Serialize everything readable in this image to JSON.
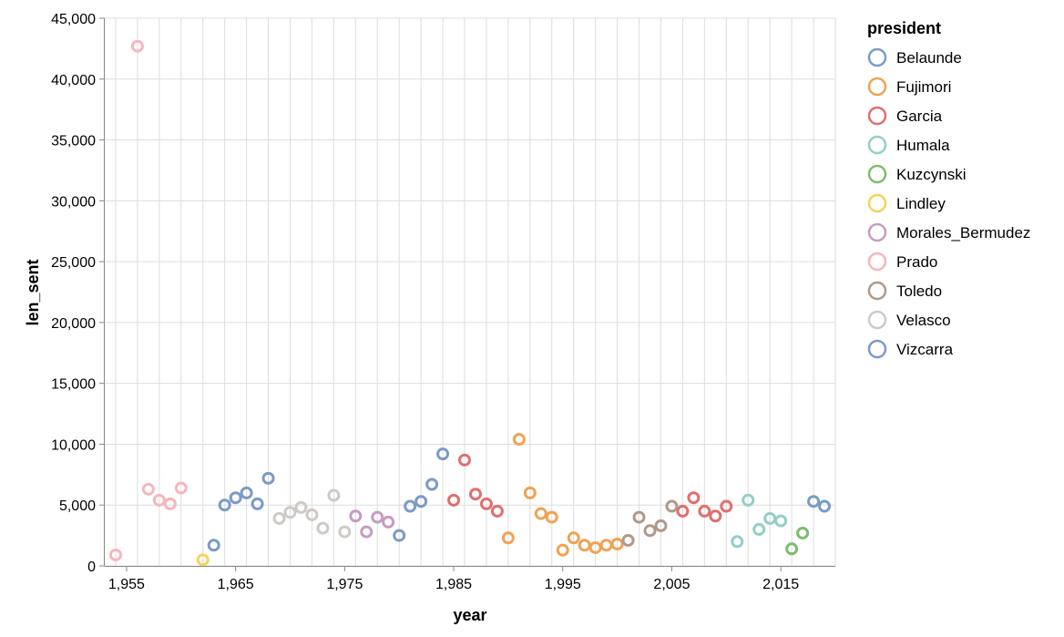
{
  "chart_data": {
    "type": "scatter",
    "xlabel": "year",
    "ylabel": "len_sent",
    "xlim": [
      1953,
      2020
    ],
    "ylim": [
      0,
      45000
    ],
    "x_ticks": [
      1955,
      1965,
      1975,
      1985,
      1995,
      2005,
      2015
    ],
    "x_tick_labels": [
      "1,955",
      "1,965",
      "1,975",
      "1,985",
      "1,995",
      "2,005",
      "2,015"
    ],
    "y_ticks": [
      0,
      5000,
      10000,
      15000,
      20000,
      25000,
      30000,
      35000,
      40000,
      45000
    ],
    "y_tick_labels": [
      "0",
      "5,000",
      "10,000",
      "15,000",
      "20,000",
      "25,000",
      "30,000",
      "35,000",
      "40,000",
      "45,000"
    ],
    "grid": true,
    "legend": {
      "title": "president",
      "position": "right",
      "entries": [
        {
          "name": "Belaunde",
          "color": "#7b9bc6"
        },
        {
          "name": "Fujimori",
          "color": "#f0a254"
        },
        {
          "name": "Garcia",
          "color": "#e06e6f"
        },
        {
          "name": "Humala",
          "color": "#93cec9"
        },
        {
          "name": "Kuzcynski",
          "color": "#7dbd6c"
        },
        {
          "name": "Lindley",
          "color": "#f3d35e"
        },
        {
          "name": "Morales_Bermudez",
          "color": "#c69bc2"
        },
        {
          "name": "Prado",
          "color": "#f7b5bd"
        },
        {
          "name": "Toledo",
          "color": "#b0998a"
        },
        {
          "name": "Velasco",
          "color": "#cfc9c6"
        },
        {
          "name": "Vizcarra",
          "color": "#7b9bc6"
        }
      ]
    },
    "series": [
      {
        "name": "Prado",
        "points": [
          [
            1954,
            900
          ],
          [
            1956,
            42700
          ],
          [
            1957,
            6300
          ],
          [
            1958,
            5400
          ],
          [
            1959,
            5100
          ],
          [
            1960,
            6400
          ]
        ]
      },
      {
        "name": "Lindley",
        "points": [
          [
            1962,
            500
          ]
        ]
      },
      {
        "name": "Belaunde",
        "points": [
          [
            1963,
            1700
          ],
          [
            1964,
            5000
          ],
          [
            1965,
            5600
          ],
          [
            1966,
            6000
          ],
          [
            1967,
            5100
          ],
          [
            1968,
            7200
          ],
          [
            1980,
            2500
          ],
          [
            1981,
            4900
          ],
          [
            1982,
            5300
          ],
          [
            1983,
            6700
          ],
          [
            1984,
            9200
          ]
        ]
      },
      {
        "name": "Velasco",
        "points": [
          [
            1969,
            3900
          ],
          [
            1970,
            4400
          ],
          [
            1971,
            4800
          ],
          [
            1972,
            4200
          ],
          [
            1973,
            3100
          ],
          [
            1974,
            5800
          ],
          [
            1975,
            2800
          ]
        ]
      },
      {
        "name": "Morales_Bermudez",
        "points": [
          [
            1976,
            4100
          ],
          [
            1977,
            2800
          ],
          [
            1978,
            4000
          ],
          [
            1979,
            3600
          ]
        ]
      },
      {
        "name": "Garcia",
        "points": [
          [
            1985,
            5400
          ],
          [
            1986,
            8700
          ],
          [
            1987,
            5900
          ],
          [
            1988,
            5100
          ],
          [
            1989,
            4500
          ],
          [
            2006,
            4500
          ],
          [
            2007,
            5600
          ],
          [
            2008,
            4500
          ],
          [
            2009,
            4100
          ],
          [
            2010,
            4900
          ]
        ]
      },
      {
        "name": "Fujimori",
        "points": [
          [
            1990,
            2300
          ],
          [
            1991,
            10400
          ],
          [
            1992,
            6000
          ],
          [
            1993,
            4300
          ],
          [
            1994,
            4000
          ],
          [
            1995,
            1300
          ],
          [
            1996,
            2300
          ],
          [
            1997,
            1700
          ],
          [
            1998,
            1500
          ],
          [
            1999,
            1700
          ],
          [
            2000,
            1800
          ]
        ]
      },
      {
        "name": "Toledo",
        "points": [
          [
            2001,
            2100
          ],
          [
            2002,
            4000
          ],
          [
            2003,
            2900
          ],
          [
            2004,
            3300
          ],
          [
            2005,
            4900
          ]
        ]
      },
      {
        "name": "Humala",
        "points": [
          [
            2011,
            2000
          ],
          [
            2012,
            5400
          ],
          [
            2013,
            3000
          ],
          [
            2014,
            3900
          ],
          [
            2015,
            3700
          ]
        ]
      },
      {
        "name": "Kuzcynski",
        "points": [
          [
            2016,
            1400
          ],
          [
            2017,
            2700
          ]
        ]
      },
      {
        "name": "Vizcarra",
        "points": [
          [
            2018,
            5300
          ],
          [
            2019,
            4900
          ]
        ]
      }
    ]
  }
}
